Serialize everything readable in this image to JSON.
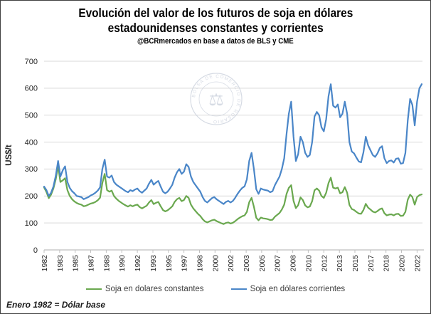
{
  "header": {
    "title_line1": "Evolución del valor de los futuros de soja en dólares",
    "title_line2": "estadounidenses constantes y corrientes",
    "subtitle": "@BCRmercados en base a datos de BLS y CME"
  },
  "footer": {
    "note": "Enero 1982 = Dólar base"
  },
  "watermark": {
    "seal_text": "BOLSA DE COMERCIO DE ROSARIO",
    "emblem": "scales-caduceus",
    "color": "#c9cfdb"
  },
  "chart_data": {
    "type": "line",
    "title": "Evolución del valor de los futuros de soja en dólares estadounidenses constantes y corrientes",
    "subtitle": "@BCRmercados en base a datos de BLS y CME",
    "xlabel": "",
    "ylabel": "US$/t",
    "ylim": [
      0,
      700
    ],
    "yticks": [
      0,
      100,
      200,
      300,
      400,
      500,
      600,
      700
    ],
    "xlim": [
      1982,
      2022.58
    ],
    "grid": "horizontal",
    "gridline_color": "#d9d9d9",
    "axis_color": "#bfbfbf",
    "tick_label_color": "#262626",
    "legend_position": "bottom",
    "xticks": {
      "positions": [
        1982,
        1983.67,
        1985.33,
        1987,
        1988.67,
        1990.33,
        1992,
        1993.67,
        1995.33,
        1997,
        1998.67,
        2000.33,
        2002,
        2003.67,
        2005.33,
        2007,
        2008.67,
        2010.33,
        2012,
        2013.67,
        2015.33,
        2017,
        2018.67,
        2020.33,
        2022
      ],
      "labels": [
        "1982",
        "1983",
        "1985",
        "1987",
        "1988",
        "1990",
        "1992",
        "1993",
        "1995",
        "1997",
        "1998",
        "2000",
        "2002",
        "2003",
        "2005",
        "2007",
        "2008",
        "2010",
        "2012",
        "2013",
        "2015",
        "2017",
        "2018",
        "2020",
        "2022"
      ]
    },
    "x": {
      "start": 1982.0,
      "step": 0.25,
      "unit": "year"
    },
    "series": [
      {
        "name": "Soja en dolares constantes",
        "color": "#6aa84f",
        "values": [
          232,
          215,
          192,
          205,
          228,
          262,
          312,
          252,
          258,
          266,
          222,
          200,
          188,
          180,
          174,
          170,
          168,
          162,
          164,
          168,
          172,
          174,
          178,
          184,
          194,
          248,
          282,
          222,
          216,
          220,
          200,
          190,
          182,
          176,
          170,
          165,
          161,
          166,
          162,
          166,
          168,
          159,
          154,
          159,
          164,
          176,
          185,
          170,
          175,
          178,
          162,
          148,
          143,
          147,
          154,
          162,
          178,
          188,
          193,
          181,
          185,
          200,
          193,
          168,
          154,
          144,
          134,
          126,
          114,
          106,
          102,
          106,
          110,
          112,
          107,
          103,
          99,
          96,
          100,
          102,
          98,
          101,
          107,
          114,
          120,
          125,
          128,
          141,
          177,
          193,
          160,
          119,
          110,
          120,
          117,
          116,
          114,
          111,
          112,
          123,
          130,
          137,
          150,
          168,
          208,
          230,
          240,
          182,
          155,
          166,
          195,
          185,
          165,
          158,
          161,
          181,
          221,
          228,
          220,
          200,
          193,
          212,
          248,
          268,
          231,
          228,
          231,
          210,
          214,
          233,
          212,
          167,
          152,
          148,
          141,
          135,
          134,
          148,
          171,
          157,
          150,
          142,
          139,
          144,
          151,
          154,
          136,
          128,
          131,
          132,
          128,
          133,
          134,
          126,
          127,
          141,
          186,
          205,
          196,
          168,
          196,
          203,
          206
        ]
      },
      {
        "name": "Soja en dólares corrientes",
        "color": "#4a86c8",
        "values": [
          235,
          222,
          200,
          212,
          235,
          275,
          330,
          272,
          295,
          310,
          252,
          230,
          218,
          210,
          200,
          198,
          196,
          188,
          192,
          196,
          202,
          206,
          212,
          220,
          232,
          300,
          335,
          272,
          268,
          276,
          252,
          242,
          236,
          230,
          224,
          218,
          214,
          222,
          218,
          224,
          228,
          218,
          212,
          220,
          228,
          246,
          260,
          242,
          250,
          256,
          235,
          216,
          210,
          216,
          228,
          242,
          268,
          288,
          300,
          282,
          290,
          318,
          308,
          272,
          252,
          240,
          228,
          216,
          196,
          182,
          176,
          184,
          192,
          196,
          188,
          182,
          176,
          170,
          178,
          182,
          176,
          182,
          194,
          208,
          220,
          230,
          236,
          262,
          330,
          360,
          300,
          225,
          208,
          228,
          224,
          222,
          220,
          214,
          218,
          240,
          256,
          272,
          300,
          340,
          430,
          505,
          550,
          420,
          330,
          355,
          420,
          400,
          360,
          345,
          352,
          400,
          495,
          512,
          500,
          455,
          440,
          485,
          570,
          615,
          535,
          528,
          540,
          492,
          505,
          550,
          505,
          400,
          365,
          358,
          342,
          328,
          325,
          362,
          420,
          388,
          370,
          352,
          345,
          358,
          378,
          385,
          340,
          322,
          330,
          332,
          324,
          338,
          340,
          320,
          322,
          360,
          480,
          560,
          538,
          462,
          550,
          600,
          615
        ]
      }
    ]
  }
}
